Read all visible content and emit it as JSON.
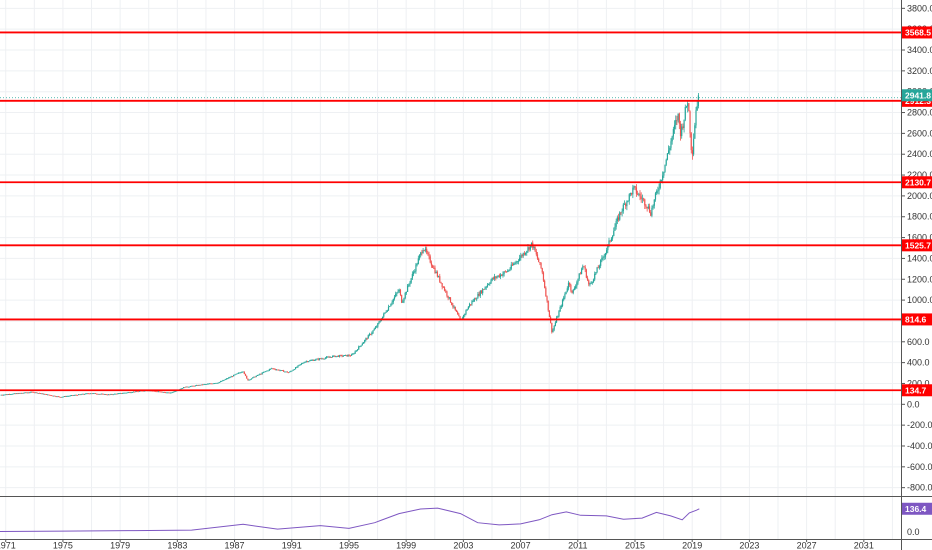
{
  "chart_data": {
    "type": "candlestick",
    "x_tick_labels": [
      "1971",
      "1975",
      "1979",
      "1983",
      "1987",
      "1991",
      "1995",
      "1999",
      "2003",
      "2007",
      "2011",
      "2015",
      "2019",
      "2023",
      "2027",
      "2031"
    ],
    "x_range": [
      1970.6,
      2033.6
    ],
    "y_tick_labels": [
      "3800.0",
      "3600.0",
      "3400.0",
      "3200.0",
      "3000.0",
      "2800.0",
      "2600.0",
      "2400.0",
      "2200.0",
      "2000.0",
      "1800.0",
      "1600.0",
      "1400.0",
      "1200.0",
      "1000.0",
      "800.0",
      "600.0",
      "400.0",
      "200.0",
      "0.0",
      "-200.0",
      "-400.0",
      "-600.0",
      "-800.0"
    ],
    "y_range": [
      -880,
      3880
    ],
    "grid": true,
    "colors": {
      "up": "#26a69a",
      "down": "#ef5350",
      "level": "#ff0000",
      "last": "#26a69a",
      "indicator": "#7e57c2"
    },
    "horizontal_levels": [
      {
        "value": 3568.5,
        "label": "3568.5"
      },
      {
        "value": 2912.3,
        "label": "2912.3"
      },
      {
        "value": 2130.7,
        "label": "2130.7"
      },
      {
        "value": 1525.7,
        "label": "1525.7"
      },
      {
        "value": 814.6,
        "label": "814.6"
      },
      {
        "value": 134.7,
        "label": "134.7"
      }
    ],
    "last_price": {
      "value": 2941.8,
      "label": "2941.8"
    },
    "price_path": [
      [
        1970.6,
        90
      ],
      [
        1972.9,
        118
      ],
      [
        1974.8,
        70
      ],
      [
        1976.9,
        107
      ],
      [
        1978.2,
        93
      ],
      [
        1980.9,
        135
      ],
      [
        1982.5,
        108
      ],
      [
        1983.5,
        165
      ],
      [
        1985.9,
        210
      ],
      [
        1987.6,
        320
      ],
      [
        1987.9,
        230
      ],
      [
        1989.6,
        345
      ],
      [
        1990.8,
        305
      ],
      [
        1991.9,
        410
      ],
      [
        1993.9,
        460
      ],
      [
        1995.2,
        470
      ],
      [
        1996.9,
        740
      ],
      [
        1998.5,
        1100
      ],
      [
        1998.7,
        980
      ],
      [
        2000.2,
        1510
      ],
      [
        2001.2,
        1230
      ],
      [
        2002.8,
        800
      ],
      [
        2003.4,
        950
      ],
      [
        2005.0,
        1200
      ],
      [
        2006.1,
        1280
      ],
      [
        2007.8,
        1540
      ],
      [
        2008.5,
        1280
      ],
      [
        2009.2,
        690
      ],
      [
        2010.4,
        1180
      ],
      [
        2010.6,
        1060
      ],
      [
        2011.4,
        1340
      ],
      [
        2011.8,
        1130
      ],
      [
        2013.0,
        1480
      ],
      [
        2014.0,
        1850
      ],
      [
        2014.9,
        2070
      ],
      [
        2015.8,
        1920
      ],
      [
        2016.1,
        1840
      ],
      [
        2017.0,
        2250
      ],
      [
        2018.0,
        2780
      ],
      [
        2018.2,
        2600
      ],
      [
        2018.7,
        2930
      ],
      [
        2018.98,
        2380
      ],
      [
        2019.3,
        2880
      ],
      [
        2019.5,
        2945
      ]
    ],
    "indicator": {
      "label": "136.4",
      "range": [
        -40,
        205
      ],
      "y_tick_labels": [
        "0.0"
      ],
      "path": [
        [
          1970.6,
          4
        ],
        [
          1975.0,
          6
        ],
        [
          1980.0,
          9
        ],
        [
          1984.0,
          12
        ],
        [
          1987.6,
          46
        ],
        [
          1990.0,
          18
        ],
        [
          1993.0,
          38
        ],
        [
          1995.0,
          22
        ],
        [
          1996.8,
          55
        ],
        [
          1998.5,
          108
        ],
        [
          2000.0,
          135
        ],
        [
          2001.2,
          140
        ],
        [
          2002.8,
          108
        ],
        [
          2004.0,
          55
        ],
        [
          2005.5,
          42
        ],
        [
          2007.0,
          48
        ],
        [
          2008.3,
          72
        ],
        [
          2009.2,
          102
        ],
        [
          2010.2,
          118
        ],
        [
          2011.2,
          98
        ],
        [
          2013.0,
          95
        ],
        [
          2014.2,
          75
        ],
        [
          2015.5,
          82
        ],
        [
          2016.5,
          115
        ],
        [
          2017.5,
          95
        ],
        [
          2018.3,
          72
        ],
        [
          2018.8,
          112
        ],
        [
          2019.3,
          128
        ],
        [
          2019.5,
          136.4
        ]
      ]
    }
  }
}
